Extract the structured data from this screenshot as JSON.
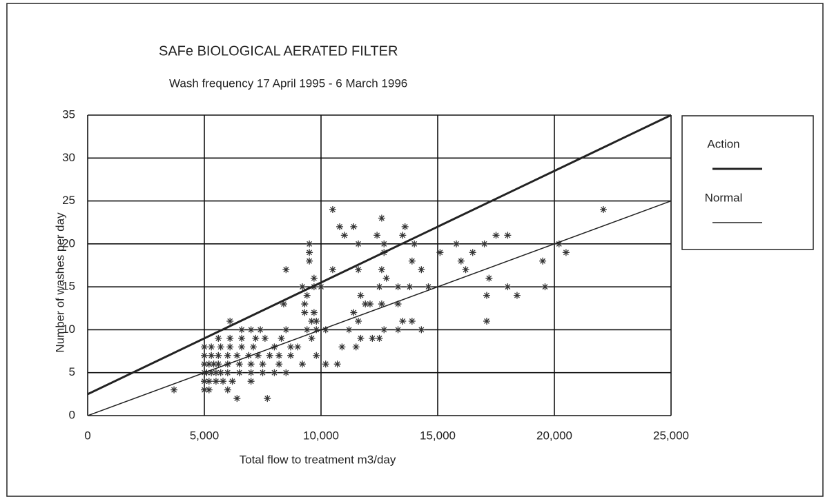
{
  "chart_data": {
    "type": "scatter",
    "title": "SAFe  BIOLOGICAL AERATED FILTER",
    "subtitle": "Wash frequency  17 April 1995 - 6 March 1996",
    "x_label": "Total flow to treatment   m3/day",
    "y_label": "Number of washes per day",
    "xlim": [
      0,
      25000
    ],
    "ylim": [
      0,
      35
    ],
    "xticks": [
      0,
      {
        "value": 5000,
        "label": "5,000"
      },
      {
        "value": 10000,
        "label": "10,000"
      },
      {
        "value": 15000,
        "label": "15,000"
      },
      {
        "value": 20000,
        "label": "20,000"
      },
      {
        "value": 25000,
        "label": "25,000"
      }
    ],
    "yticks": [
      0,
      5,
      10,
      15,
      20,
      25,
      30,
      35
    ],
    "grid": true,
    "legend": "right",
    "points": {
      "color": "#333333",
      "x": [
        3700,
        5000,
        5200,
        6000,
        6400,
        7700,
        5000,
        5200,
        5500,
        5800,
        6200,
        7000,
        5000,
        5100,
        5300,
        5500,
        5700,
        6000,
        6500,
        7000,
        7500,
        8000,
        8500,
        5000,
        5200,
        5400,
        5600,
        6000,
        6500,
        7000,
        7500,
        8200,
        9200,
        10700,
        10200,
        5000,
        5300,
        5600,
        6000,
        6400,
        6900,
        7300,
        7800,
        8200,
        8700,
        9800,
        5000,
        5300,
        5700,
        6100,
        6600,
        7100,
        8000,
        8700,
        9000,
        10900,
        11500,
        5600,
        6100,
        6600,
        7200,
        7600,
        8300,
        9600,
        11700,
        12200,
        12500,
        6100,
        6600,
        7000,
        7400,
        8500,
        9400,
        9800,
        10200,
        11200,
        12700,
        13300,
        14300,
        9600,
        9800,
        11600,
        13500,
        13900,
        17100,
        9300,
        9700,
        11400,
        11900,
        12100,
        12600,
        13300,
        9300,
        9400,
        11700,
        17100,
        18400,
        8400,
        9200,
        9700,
        12500,
        13300,
        13800,
        14600,
        18000,
        19600,
        10000,
        9700,
        12800,
        17200,
        10500,
        11600,
        12600,
        14300,
        16200,
        8500,
        9500,
        13900,
        16000,
        19500,
        9500,
        12700,
        15100,
        16500,
        20500,
        9500,
        11600,
        12700,
        14000,
        15800,
        17000,
        11000,
        12400,
        13500,
        17500,
        18000,
        10800,
        11400,
        13600,
        12600,
        10500,
        22100,
        20200
      ],
      "y": [
        3,
        3,
        3,
        3,
        2,
        2,
        4,
        4,
        4,
        4,
        4,
        4,
        5,
        5,
        5,
        5,
        5,
        5,
        5,
        5,
        5,
        5,
        5,
        6,
        6,
        6,
        6,
        6,
        6,
        6,
        6,
        6,
        6,
        6,
        6,
        7,
        7,
        7,
        7,
        7,
        7,
        7,
        7,
        7,
        7,
        7,
        8,
        8,
        8,
        8,
        8,
        8,
        8,
        8,
        8,
        8,
        8,
        9,
        9,
        9,
        9,
        9,
        9,
        9,
        9,
        9,
        9,
        11,
        10,
        10,
        10,
        10,
        10,
        10,
        10,
        10,
        10,
        10,
        10,
        11,
        11,
        11,
        11,
        11,
        11,
        12,
        12,
        12,
        13,
        13,
        13,
        13,
        13,
        14,
        14,
        14,
        14,
        13,
        15,
        15,
        15,
        15,
        15,
        15,
        15,
        15,
        15,
        16,
        16,
        16,
        17,
        17,
        17,
        17,
        17,
        17,
        18,
        18,
        18,
        18,
        19,
        19,
        19,
        19,
        19,
        20,
        20,
        20,
        20,
        20,
        20,
        21,
        21,
        21,
        21,
        21,
        22,
        22,
        22,
        23,
        24,
        24,
        20
      ]
    },
    "series": [
      {
        "name": "Action",
        "color": "#222222",
        "linewidth": 3,
        "x": [
          0,
          25000
        ],
        "values": [
          2.5,
          35
        ]
      },
      {
        "name": "Normal",
        "color": "#222222",
        "linewidth": 1.5,
        "x": [
          0,
          25000
        ],
        "values": [
          0,
          25
        ]
      }
    ]
  }
}
